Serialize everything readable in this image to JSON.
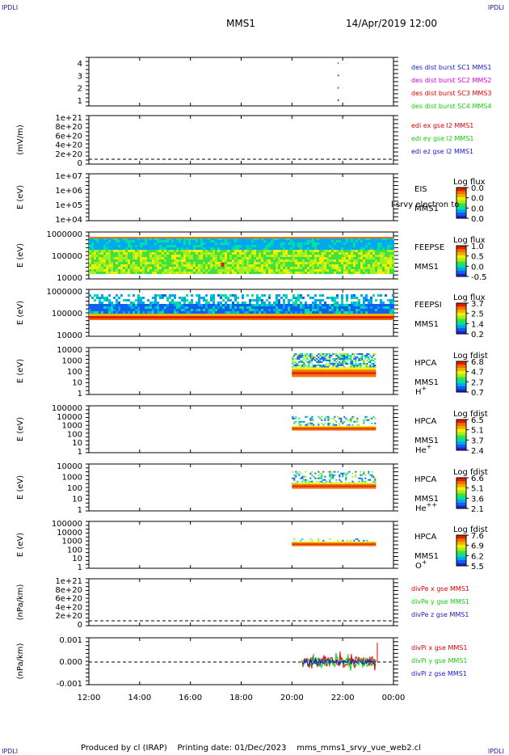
{
  "corners": {
    "tl": "IPDLI",
    "tr": "IPDLI",
    "bl": "IPDLI",
    "br": "IPDLI"
  },
  "header": {
    "mission": "MMS1",
    "datetime": "14/Apr/2019 12:00"
  },
  "footer": {
    "text": "Produced by cl (IRAP)    Printing date: 01/Dec/2023    mms_mms1_srvy_vue_web2.cl"
  },
  "colors": {
    "blue": "#1a1ad0",
    "magenta": "#e000e0",
    "red": "#e00000",
    "green": "#10d010",
    "dashed": "#000000"
  },
  "chart_data": {
    "type": "multi-panel time series",
    "x_ticks": [
      "12:00",
      "14:00",
      "16:00",
      "18:00",
      "20:00",
      "22:00",
      "00:00"
    ],
    "x_range_hours": [
      12,
      24
    ],
    "panels": [
      {
        "id": "burst",
        "ylabel": "",
        "yticks": [
          "1",
          "2",
          "3",
          "4"
        ],
        "ylim": [
          0.5,
          4.5
        ],
        "legend": [
          {
            "text": "des dist burst SC1 MMS1",
            "color": "#1a1ad0"
          },
          {
            "text": "des dist burst SC2 MMS2",
            "color": "#e000e0"
          },
          {
            "text": "des dist burst SC3 MMS3",
            "color": "#e00000"
          },
          {
            "text": "des dist burst SC4 MMS4",
            "color": "#10d010"
          }
        ],
        "marks": [
          {
            "t": 21.8,
            "sc": 1
          },
          {
            "t": 21.8,
            "sc": 2
          },
          {
            "t": 21.8,
            "sc": 3
          },
          {
            "t": 21.8,
            "sc": 4
          }
        ]
      },
      {
        "id": "edi",
        "ylabel": "(mV/m)",
        "yticks": [
          "0",
          "2e+20",
          "4e+20",
          "6e+20",
          "8e+20",
          "1e+21"
        ],
        "legend": [
          {
            "text": "edi ex gse l2 MMS1",
            "color": "#e00000"
          },
          {
            "text": "edi ey gse l2 MMS1",
            "color": "#10d010"
          },
          {
            "text": "edi ez gse l2 MMS1",
            "color": "#1a1ad0"
          }
        ]
      },
      {
        "id": "eis",
        "ylabel": "E (eV)",
        "yticks": [
          "1e+04",
          "1e+05",
          "1e+06",
          "1e+07"
        ],
        "labels": [
          "EIS",
          "MMS1"
        ],
        "overlay_text": "l srvy electron to",
        "colorbar": {
          "title": "Log flux",
          "ticks": [
            "0.0",
            "0.0",
            "0.0",
            "0.0"
          ]
        }
      },
      {
        "id": "feepse",
        "ylabel": "E (eV)",
        "yticks": [
          "10000",
          "100000",
          "1000000"
        ],
        "labels": [
          "FEEPSE",
          "MMS1"
        ],
        "colorbar": {
          "title": "Log flux",
          "ticks": [
            "1.0",
            "0.5",
            "0.0",
            "-0.5"
          ]
        },
        "spectrogram": {
          "t_start": 12.0,
          "t_end": 24.0
        }
      },
      {
        "id": "feepsi",
        "ylabel": "E (eV)",
        "yticks": [
          "10000",
          "100000",
          "1000000"
        ],
        "labels": [
          "FEEPSI",
          "MMS1"
        ],
        "colorbar": {
          "title": "Log flux",
          "ticks": [
            "3.7",
            "2.5",
            "1.4",
            "0.2"
          ]
        },
        "spectrogram": {
          "t_start": 12.0,
          "t_end": 24.0
        }
      },
      {
        "id": "hpca-h",
        "ylabel": "E (eV)",
        "yticks": [
          "1",
          "10",
          "100",
          "1000",
          "10000"
        ],
        "labels": [
          "HPCA",
          "MMS1",
          "H+"
        ],
        "colorbar": {
          "title": "Log fdist",
          "ticks": [
            "6.8",
            "4.7",
            "2.7",
            "0.7"
          ]
        },
        "spectrogram": {
          "t_start": 20.0,
          "t_end": 23.25
        }
      },
      {
        "id": "hpca-he",
        "ylabel": "E (eV)",
        "yticks": [
          "1",
          "10",
          "100",
          "1000",
          "10000",
          "100000"
        ],
        "labels": [
          "HPCA",
          "MMS1",
          "He+"
        ],
        "colorbar": {
          "title": "Log fdist",
          "ticks": [
            "6.5",
            "5.1",
            "3.7",
            "2.4"
          ]
        },
        "spectrogram": {
          "t_start": 20.0,
          "t_end": 23.25
        }
      },
      {
        "id": "hpca-he2",
        "ylabel": "E (eV)",
        "yticks": [
          "1",
          "10",
          "100",
          "1000",
          "10000"
        ],
        "labels": [
          "HPCA",
          "MMS1",
          "He++"
        ],
        "colorbar": {
          "title": "Log fdist",
          "ticks": [
            "6.6",
            "5.1",
            "3.6",
            "2.1"
          ]
        },
        "spectrogram": {
          "t_start": 20.0,
          "t_end": 23.25
        }
      },
      {
        "id": "hpca-o",
        "ylabel": "E (eV)",
        "yticks": [
          "1",
          "10",
          "100",
          "1000",
          "10000",
          "100000"
        ],
        "labels": [
          "HPCA",
          "MMS1",
          "O+"
        ],
        "colorbar": {
          "title": "Log fdist",
          "ticks": [
            "7.6",
            "6.9",
            "6.2",
            "5.5"
          ]
        },
        "spectrogram": {
          "t_start": 20.0,
          "t_end": 23.25
        }
      },
      {
        "id": "divpe",
        "ylabel": "(nPa/km)",
        "yticks": [
          "0",
          "2e+20",
          "4e+20",
          "6e+20",
          "8e+20",
          "1e+21"
        ],
        "legend": [
          {
            "text": "divPe x gse MMS1",
            "color": "#e00000"
          },
          {
            "text": "divPe y gse MMS1",
            "color": "#10d010"
          },
          {
            "text": "divPe z gse MMS1",
            "color": "#1a1ad0"
          }
        ]
      },
      {
        "id": "divpi",
        "ylabel": "(nPa/km)",
        "yticks": [
          "-0.001",
          "0.000",
          "0.001"
        ],
        "ylim": [
          -0.0015,
          0.0015
        ],
        "legend": [
          {
            "text": "divPi x gse MMS1",
            "color": "#e00000"
          },
          {
            "text": "divPi y gse MMS1",
            "color": "#10d010"
          },
          {
            "text": "divPi z gse MMS1",
            "color": "#1a1ad0"
          }
        ],
        "series_span": {
          "t_start": 20.4,
          "t_end": 23.3
        }
      }
    ]
  }
}
